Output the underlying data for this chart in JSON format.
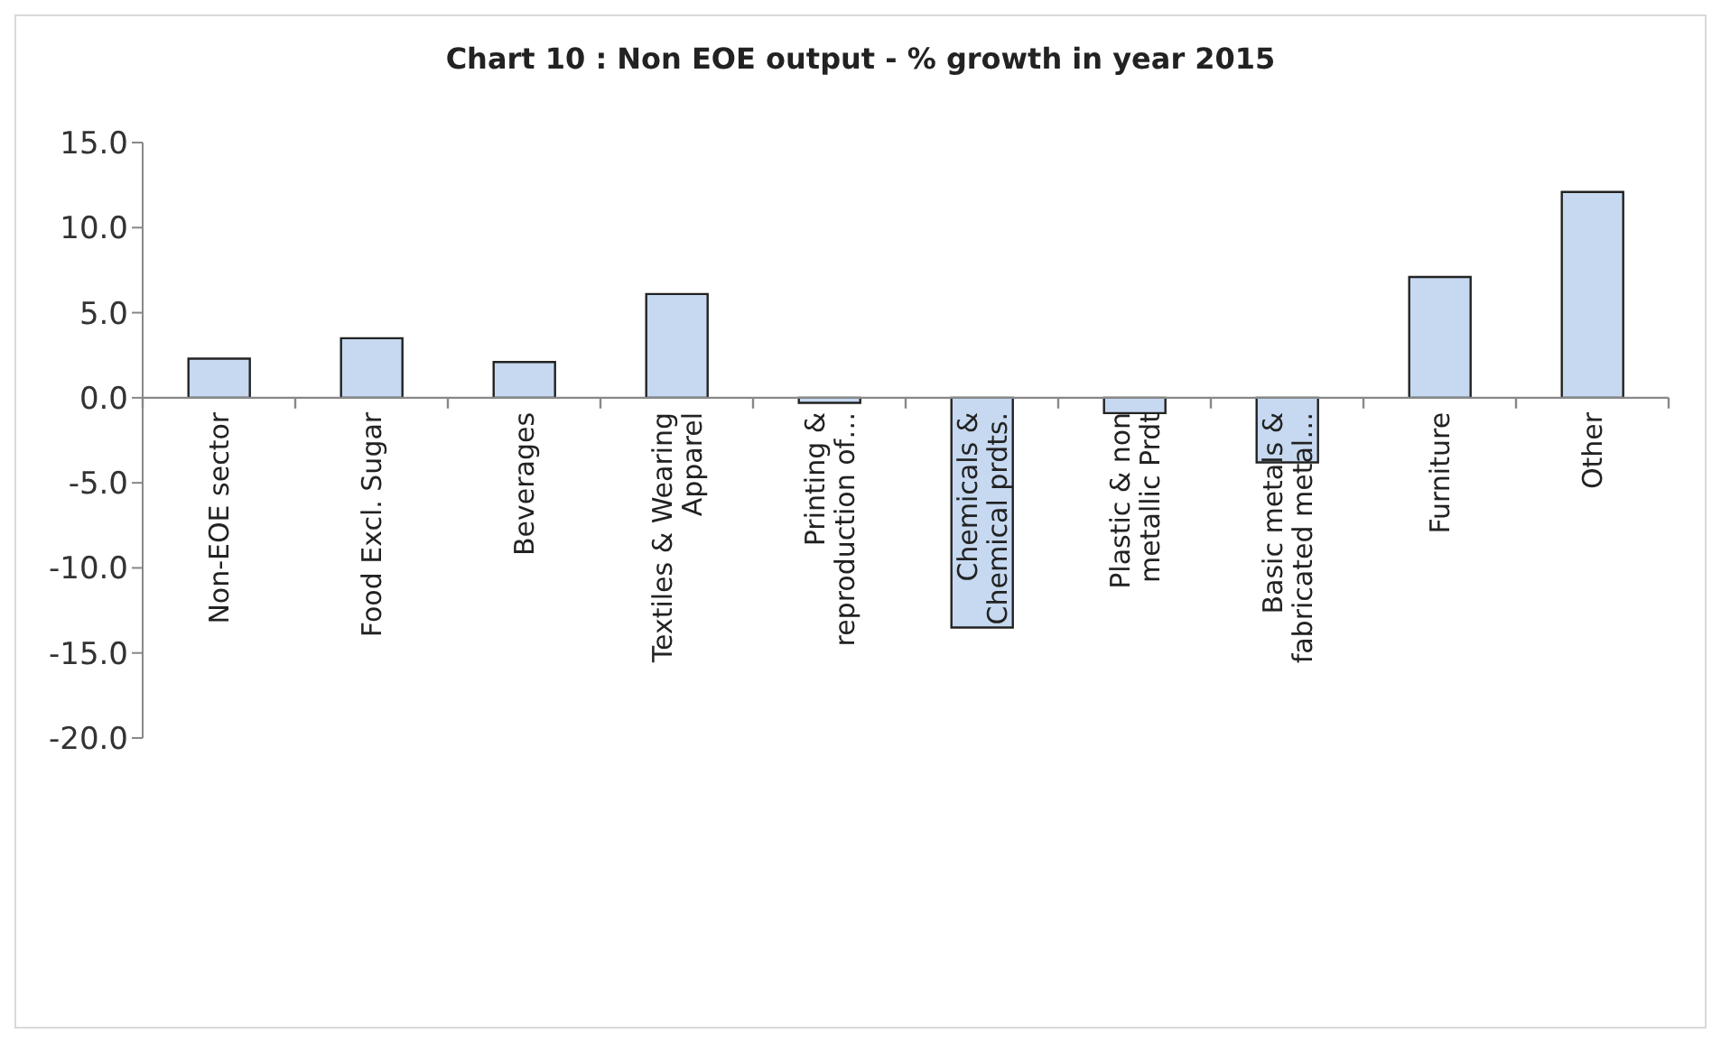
{
  "chart_data": {
    "type": "bar",
    "title": "Chart 10 : Non EOE output - % growth in year 2015",
    "categories": [
      "Non-EOE sector",
      "Food Excl. Sugar",
      "Beverages",
      "Textiles & Wearing Apparel",
      "Printing & reproduction of…",
      "Chemicals & Chemical prdts.",
      "Plastic & non metallic Prdt",
      "Basic metals & fabricated metal…",
      "Furniture",
      "Other"
    ],
    "values": [
      2.3,
      3.5,
      2.1,
      6.1,
      -0.3,
      -13.5,
      -0.9,
      -3.8,
      7.1,
      12.1
    ],
    "color": "#c6d9f1",
    "ylim": [
      -20,
      15
    ],
    "yticks": [
      {
        "value": -20,
        "label": "-20.0"
      },
      {
        "value": -15,
        "label": "-15.0"
      },
      {
        "value": -10,
        "label": "-10.0"
      },
      {
        "value": -5,
        "label": "-5.0"
      },
      {
        "value": 0,
        "label": "0.0"
      },
      {
        "value": 5,
        "label": "5.0"
      },
      {
        "value": 10,
        "label": "10.0"
      },
      {
        "value": 15,
        "label": "15.0"
      }
    ],
    "grid": false,
    "legend": false
  }
}
